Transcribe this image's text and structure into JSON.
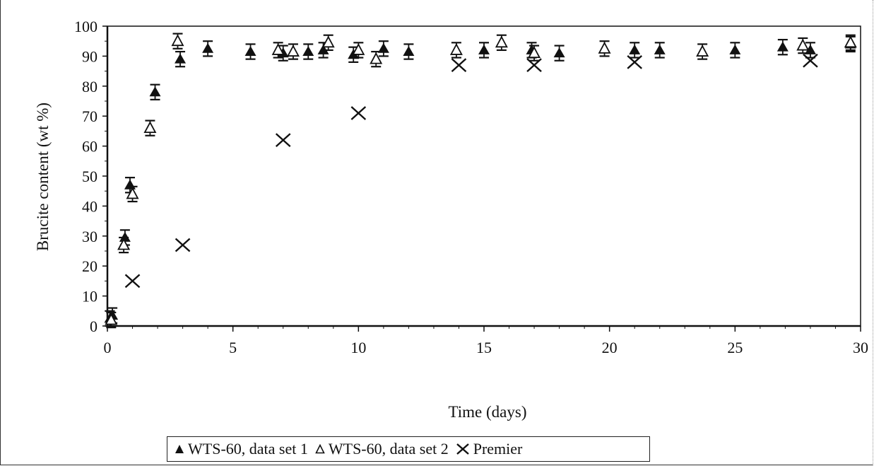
{
  "chart_data": {
    "type": "scatter",
    "xlabel": "Time (days)",
    "ylabel": "Brucite content (wt %)",
    "xlim": [
      0,
      30
    ],
    "ylim": [
      0,
      100
    ],
    "x_ticks": [
      "0",
      "5",
      "10",
      "15",
      "20",
      "25",
      "30"
    ],
    "y_ticks": [
      "0",
      "10",
      "20",
      "30",
      "40",
      "50",
      "60",
      "70",
      "80",
      "90",
      "100"
    ],
    "grid": false,
    "legend_position": "bottom",
    "series": [
      {
        "name": "WTS-60, data set 1",
        "marker": "filled-triangle",
        "error_bars": true,
        "points": [
          {
            "x": 0.1,
            "y": 2.5
          },
          {
            "x": 0.2,
            "y": 3.5
          },
          {
            "x": 0.7,
            "y": 29.5
          },
          {
            "x": 0.9,
            "y": 47
          },
          {
            "x": 1.9,
            "y": 78
          },
          {
            "x": 2.9,
            "y": 89
          },
          {
            "x": 4.0,
            "y": 92.5
          },
          {
            "x": 5.7,
            "y": 91.5
          },
          {
            "x": 7.0,
            "y": 91
          },
          {
            "x": 8.0,
            "y": 91.5
          },
          {
            "x": 8.6,
            "y": 92
          },
          {
            "x": 9.8,
            "y": 90.5
          },
          {
            "x": 11.0,
            "y": 92.5
          },
          {
            "x": 12.0,
            "y": 91.5
          },
          {
            "x": 15.0,
            "y": 92
          },
          {
            "x": 16.9,
            "y": 92
          },
          {
            "x": 18.0,
            "y": 91
          },
          {
            "x": 21.0,
            "y": 92
          },
          {
            "x": 22.0,
            "y": 92
          },
          {
            "x": 25.0,
            "y": 92
          },
          {
            "x": 26.9,
            "y": 93
          },
          {
            "x": 28.0,
            "y": 92
          },
          {
            "x": 29.6,
            "y": 94
          }
        ]
      },
      {
        "name": "WTS-60, data set 2",
        "marker": "open-triangle",
        "error_bars": true,
        "points": [
          {
            "x": 0.15,
            "y": 2.0
          },
          {
            "x": 0.65,
            "y": 27
          },
          {
            "x": 1.0,
            "y": 44
          },
          {
            "x": 1.7,
            "y": 66
          },
          {
            "x": 2.8,
            "y": 95
          },
          {
            "x": 6.8,
            "y": 92
          },
          {
            "x": 7.4,
            "y": 91.5
          },
          {
            "x": 8.8,
            "y": 94.5
          },
          {
            "x": 10.0,
            "y": 92
          },
          {
            "x": 10.7,
            "y": 89
          },
          {
            "x": 13.9,
            "y": 92
          },
          {
            "x": 15.7,
            "y": 94.5
          },
          {
            "x": 17.0,
            "y": 91
          },
          {
            "x": 19.8,
            "y": 92.5
          },
          {
            "x": 23.7,
            "y": 91.5
          },
          {
            "x": 27.7,
            "y": 93.5
          },
          {
            "x": 29.6,
            "y": 94.5
          }
        ]
      },
      {
        "name": "Premier",
        "marker": "x",
        "error_bars": false,
        "points": [
          {
            "x": 1.0,
            "y": 15
          },
          {
            "x": 3.0,
            "y": 27
          },
          {
            "x": 7.0,
            "y": 62
          },
          {
            "x": 10.0,
            "y": 71
          },
          {
            "x": 14.0,
            "y": 87
          },
          {
            "x": 17.0,
            "y": 87
          },
          {
            "x": 21.0,
            "y": 88
          },
          {
            "x": 28.0,
            "y": 88.5
          }
        ]
      }
    ]
  },
  "colors": {
    "ink": "#111111",
    "frame": "#222222"
  },
  "legend": {
    "items": [
      {
        "symbol": "filled-triangle-icon",
        "label": "WTS-60, data set 1"
      },
      {
        "symbol": "open-triangle-icon",
        "label": "WTS-60, data set 2"
      },
      {
        "symbol": "x-mark-icon",
        "label": "Premier"
      }
    ]
  }
}
